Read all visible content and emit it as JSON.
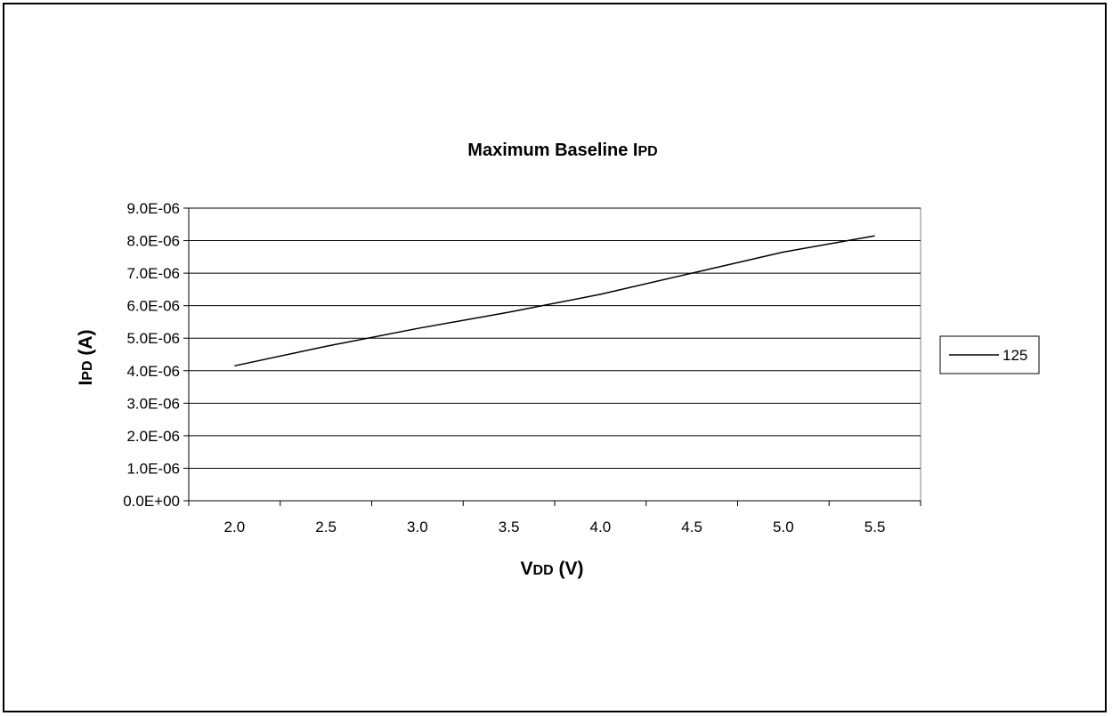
{
  "chart_data": {
    "type": "line",
    "title": {
      "main": "Maximum Baseline I",
      "sub": "PD"
    },
    "xlabel": {
      "main": "V",
      "sub": "DD",
      "rest": " (V)"
    },
    "ylabel": {
      "main": "I",
      "sub": "PD",
      "rest": " (A)"
    },
    "x": [
      2.0,
      2.5,
      3.0,
      3.5,
      4.0,
      4.5,
      5.0,
      5.5
    ],
    "x_tick_labels": [
      "2.0",
      "2.5",
      "3.0",
      "3.5",
      "4.0",
      "4.5",
      "5.0",
      "5.5"
    ],
    "y_tick_values": [
      0,
      1e-06,
      2e-06,
      3e-06,
      4e-06,
      5e-06,
      6e-06,
      7e-06,
      8e-06,
      9e-06
    ],
    "y_tick_labels": [
      "0.0E+00",
      "1.0E-06",
      "2.0E-06",
      "3.0E-06",
      "4.0E-06",
      "5.0E-06",
      "6.0E-06",
      "7.0E-06",
      "8.0E-06",
      "9.0E-06"
    ],
    "ylim": [
      0,
      9e-06
    ],
    "grid": "horizontal",
    "legend_position": "right",
    "series": [
      {
        "name": "125",
        "color": "#000000",
        "values": [
          4.15e-06,
          4.75e-06,
          5.3e-06,
          5.8e-06,
          6.35e-06,
          7e-06,
          7.65e-06,
          8.15e-06
        ]
      }
    ]
  }
}
